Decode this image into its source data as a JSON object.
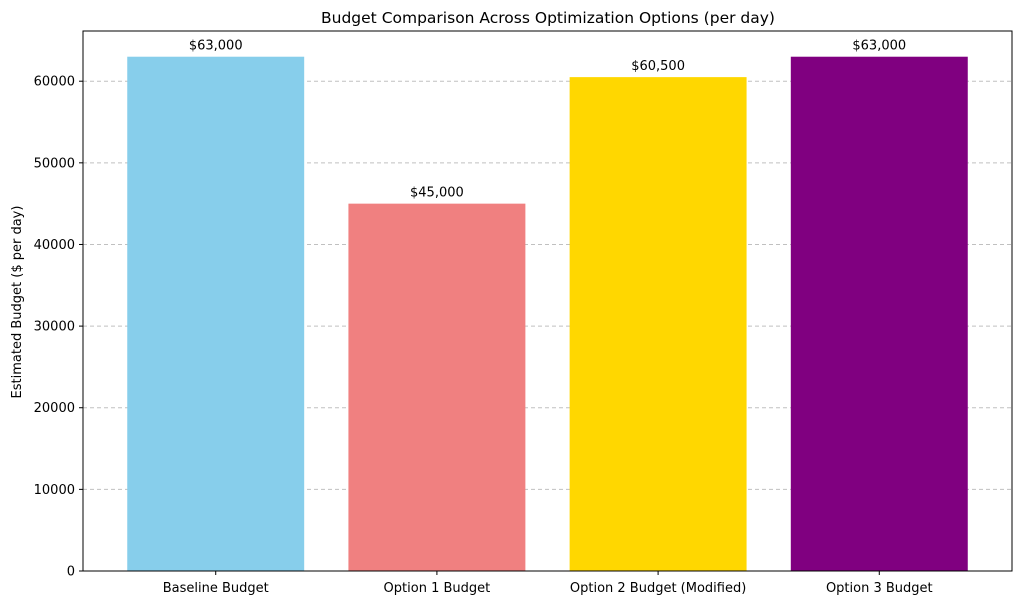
{
  "chart_data": {
    "type": "bar",
    "title": "Budget Comparison Across Optimization Options (per day)",
    "xlabel": "",
    "ylabel": "Estimated Budget ($ per day)",
    "categories": [
      "Baseline Budget",
      "Option 1 Budget",
      "Option 2 Budget (Modified)",
      "Option 3 Budget"
    ],
    "values": [
      63000,
      45000,
      60500,
      63000
    ],
    "value_labels": [
      "$63,000",
      "$45,000",
      "$60,500",
      "$63,000"
    ],
    "bar_colors": [
      "#87CEEB",
      "#F08080",
      "#FFD700",
      "#800080"
    ],
    "ylim": [
      0,
      66150
    ],
    "yticks": [
      0,
      10000,
      20000,
      30000,
      40000,
      50000,
      60000
    ],
    "ytick_labels": [
      "0",
      "10000",
      "20000",
      "30000",
      "40000",
      "50000",
      "60000"
    ],
    "grid": {
      "y": true,
      "x": false,
      "style": "dashed",
      "color": "#c0c0c0"
    },
    "legend": null
  }
}
